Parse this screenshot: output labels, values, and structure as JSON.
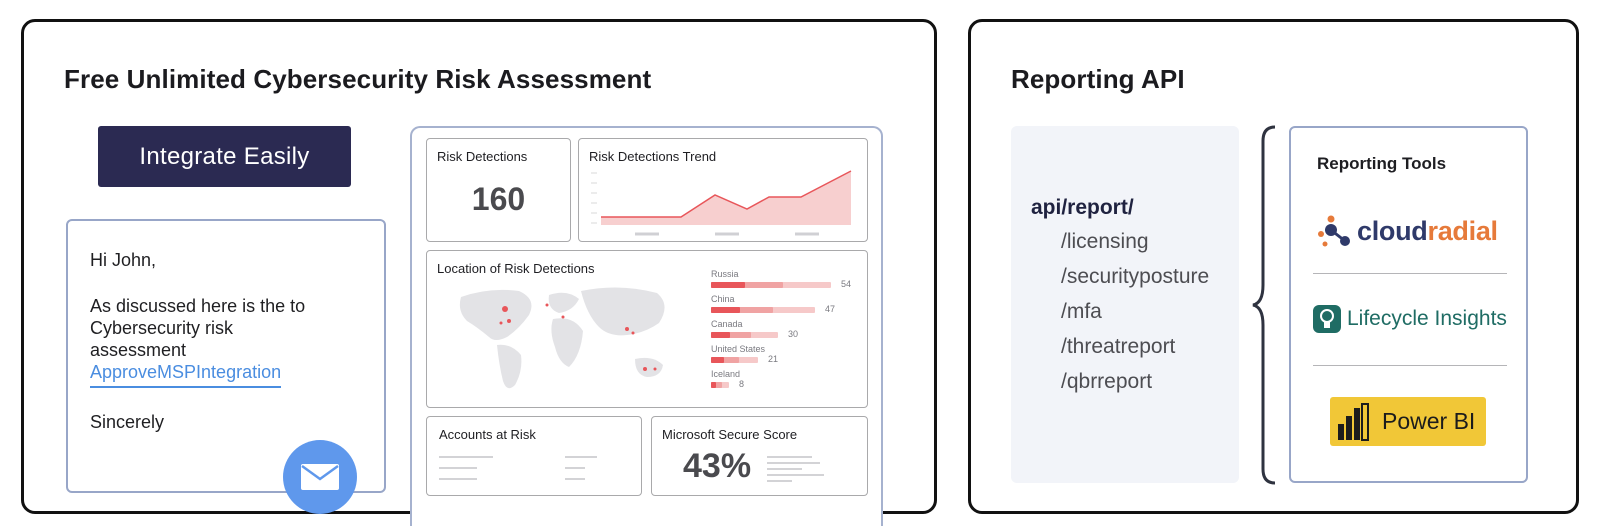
{
  "left_card": {
    "title": "Free Unlimited Cybersecurity Risk Assessment",
    "integrate_button": "Integrate Easily",
    "email": {
      "greeting": "Hi John,",
      "body": "As discussed here is the to Cybersecurity risk assessment",
      "link": "ApproveMSPIntegration",
      "signoff": "Sincerely",
      "icon": "envelope-icon"
    },
    "dashboard": {
      "risk_detections": {
        "title": "Risk Detections",
        "value": "160"
      },
      "trend": {
        "title": "Risk Detections Trend"
      },
      "location": {
        "title": "Location of Risk Detections",
        "countries": [
          {
            "name": "Russia",
            "value": 54
          },
          {
            "name": "China",
            "value": 47
          },
          {
            "name": "Canada",
            "value": 30
          },
          {
            "name": "United States",
            "value": 21
          },
          {
            "name": "Iceland",
            "value": 8
          }
        ]
      },
      "accounts": {
        "title": "Accounts at Risk"
      },
      "secure_score": {
        "title": "Microsoft Secure Score",
        "value": "43%"
      }
    },
    "colors": {
      "button": "#2b2a52",
      "link": "#4a8de0",
      "accent_red": "#e8565a",
      "mail_circle": "#5f98ec"
    }
  },
  "right_card": {
    "title": "Reporting API",
    "endpoints": {
      "root": "api/report/",
      "items": [
        "/licensing",
        "/securityposture",
        "/mfa",
        "/threatreport",
        "/qbrreport"
      ]
    },
    "tools": {
      "title": "Reporting Tools",
      "cloudradial": {
        "part1": "cloud",
        "part2": "radial"
      },
      "lifecycle": "Lifecycle Insights",
      "powerbi": "Power BI"
    }
  }
}
